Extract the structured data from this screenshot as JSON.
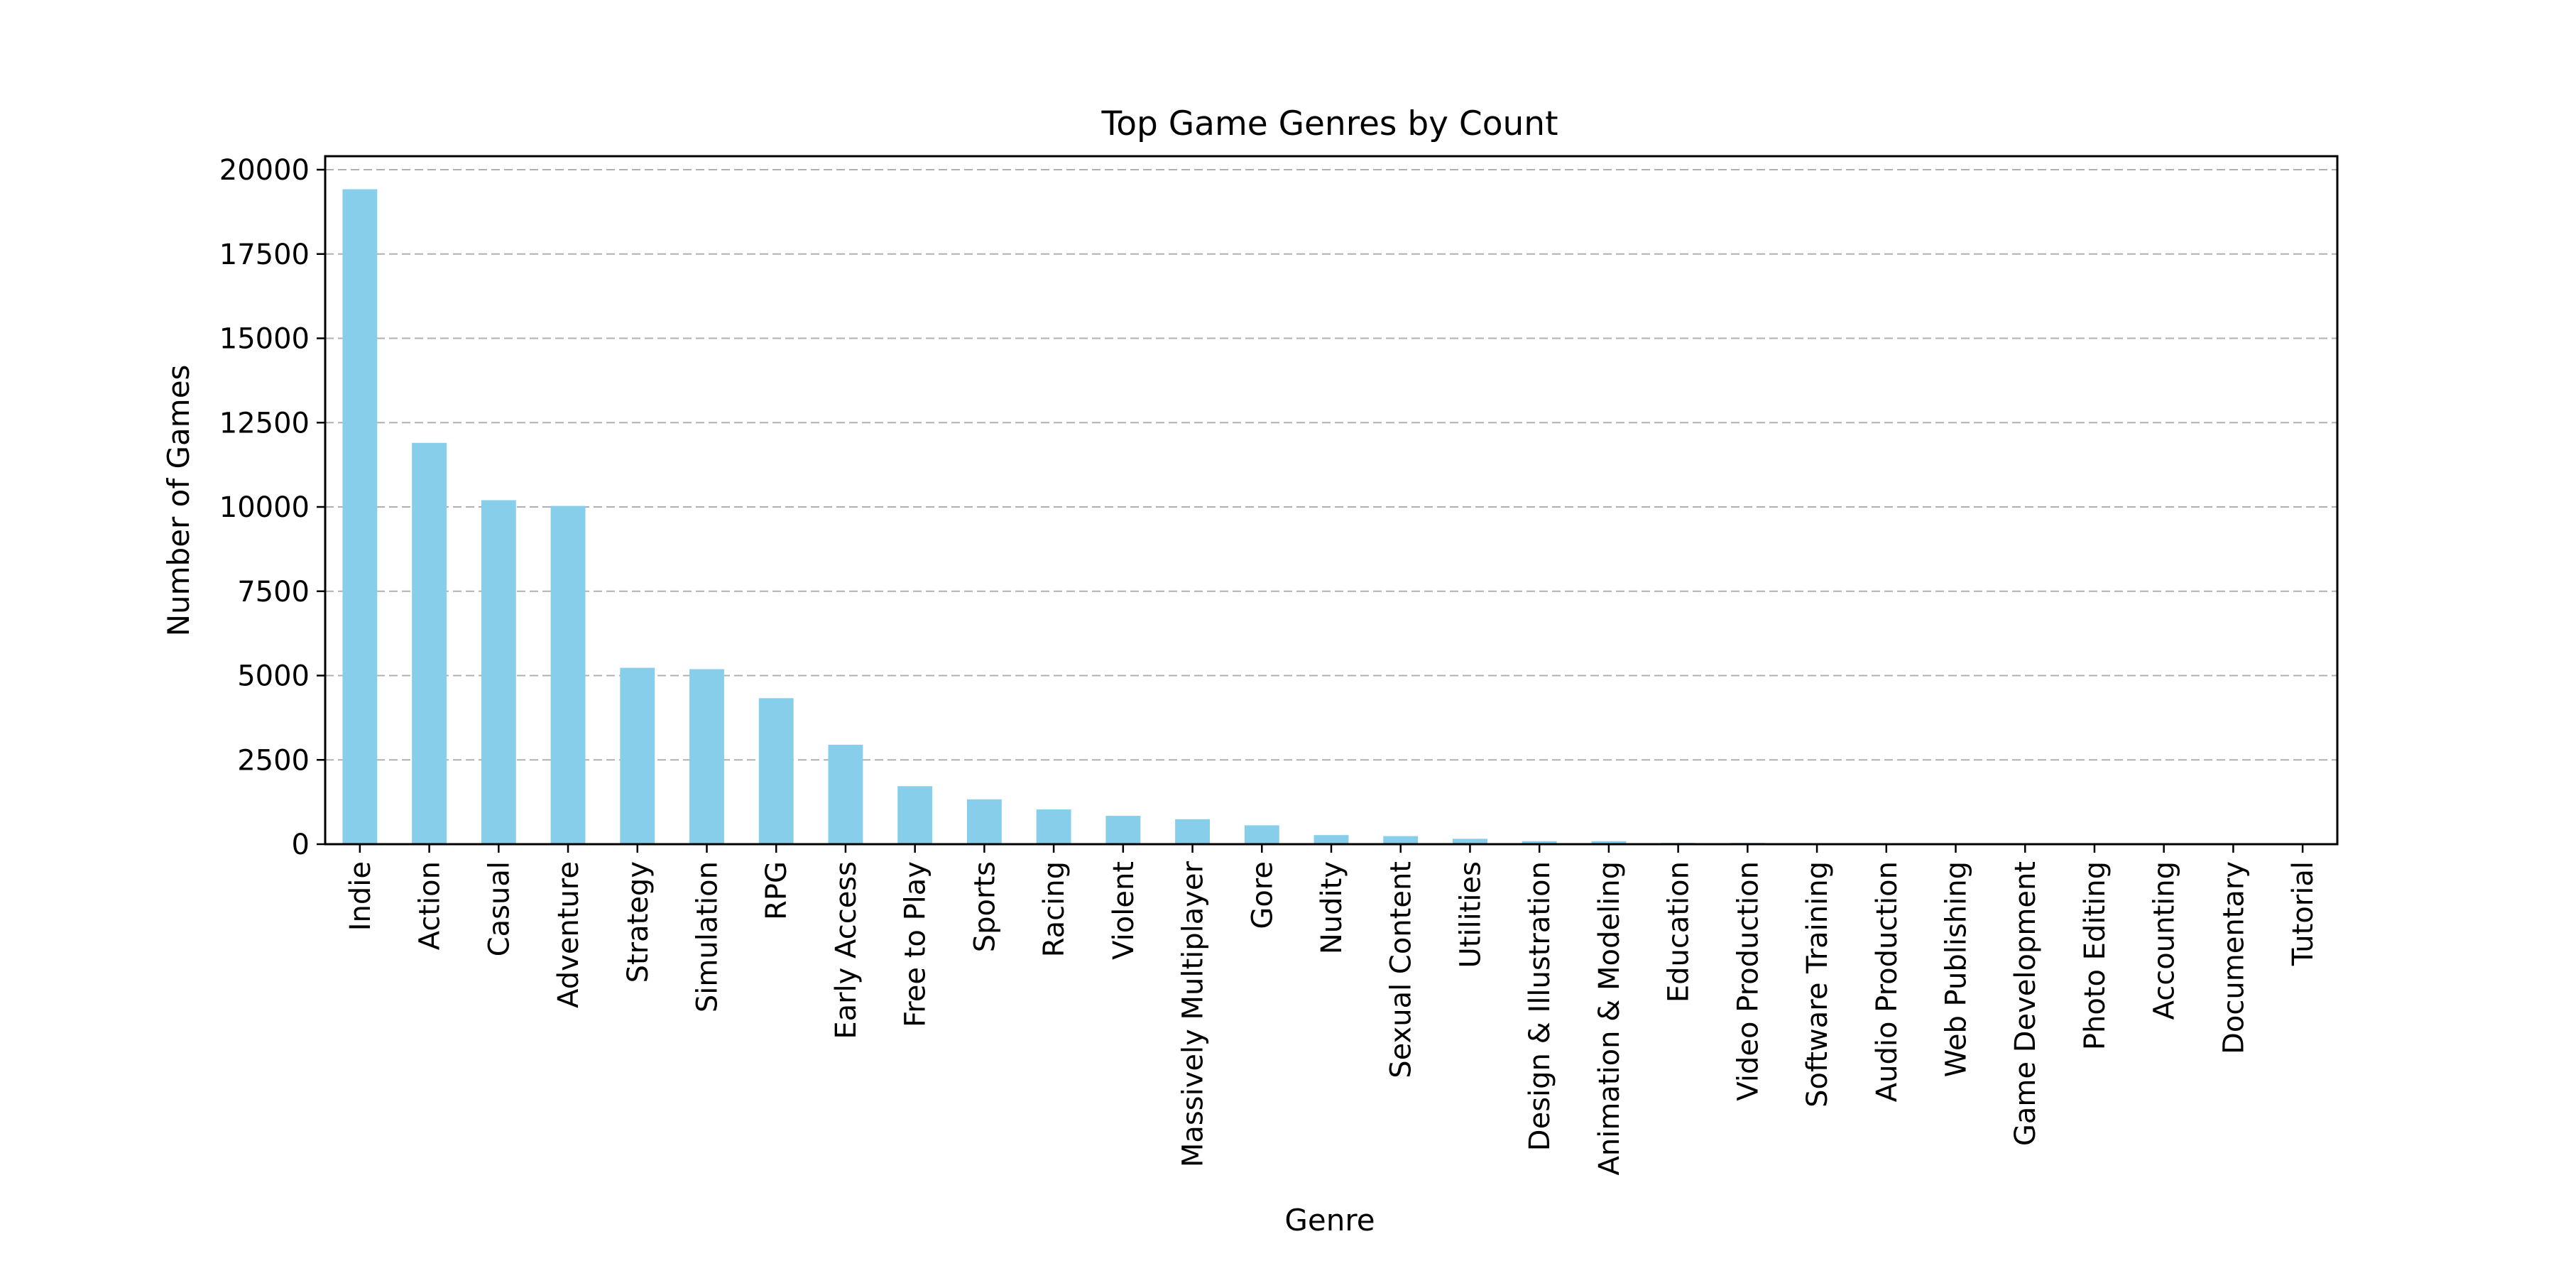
{
  "chart_data": {
    "type": "bar",
    "title": "Top Game Genres by Count",
    "xlabel": "Genre",
    "ylabel": "Number of Games",
    "ylim": [
      0,
      20400
    ],
    "yticks": [
      0,
      2500,
      5000,
      7500,
      10000,
      12500,
      15000,
      17500,
      20000
    ],
    "grid": "y-dashed",
    "bar_color": "#87ceeb",
    "grid_color": "#b0b0b0",
    "categories": [
      "Indie",
      "Action",
      "Casual",
      "Adventure",
      "Strategy",
      "Simulation",
      "RPG",
      "Early Access",
      "Free to Play",
      "Sports",
      "Racing",
      "Violent",
      "Massively Multiplayer",
      "Gore",
      "Nudity",
      "Sexual Content",
      "Utilities",
      "Design & Illustration",
      "Animation & Modeling",
      "Education",
      "Video Production",
      "Software Training",
      "Audio Production",
      "Web Publishing",
      "Game Development",
      "Photo Editing",
      "Accounting",
      "Documentary",
      "Tutorial"
    ],
    "values": [
      19420,
      11900,
      10200,
      10030,
      5230,
      5190,
      4330,
      2950,
      1720,
      1330,
      1030,
      840,
      740,
      560,
      270,
      240,
      160,
      90,
      90,
      40,
      40,
      20,
      20,
      20,
      20,
      10,
      10,
      5,
      5
    ]
  }
}
